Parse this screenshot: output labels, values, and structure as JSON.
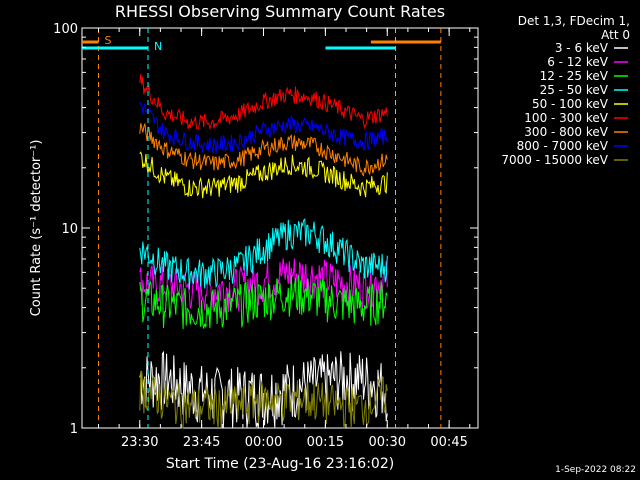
{
  "chart_data": {
    "type": "line",
    "title": "RHESSI Observing Summary Count Rates",
    "xlabel": "Start Time (23-Aug-16 23:16:02)",
    "ylabel": "Count Rate (s⁻¹ detector⁻¹)",
    "yscale": "log",
    "ylim": [
      1,
      100
    ],
    "xlim_minutes": [
      0,
      96
    ],
    "x_tick_labels": [
      "23:30",
      "23:45",
      "00:00",
      "00:15",
      "00:30",
      "00:45"
    ],
    "x_tick_minutes": [
      14,
      29,
      44,
      59,
      74,
      89
    ],
    "y_tick_labels": [
      "1",
      "10",
      "100"
    ],
    "y_tick_values": [
      1,
      10,
      100
    ],
    "header_lines": [
      "Det 1,3, FDecim 1,",
      "Att 0"
    ],
    "legend_position": "right",
    "timestamp": "1-Sep-2022 08:22",
    "markers": [
      {
        "label": "S",
        "color": "#ff8000",
        "start_minute": 4,
        "end_minute": 87
      },
      {
        "label": "N",
        "color": "#00ffff",
        "start_minute": 16,
        "end_minute": 76
      }
    ],
    "series": [
      {
        "name": "3 - 6 keV",
        "color": "#ffffff",
        "values": [
          1.8,
          1.8,
          1.6,
          1.5,
          1.5,
          1.5,
          1.6,
          1.7,
          1.8,
          1.8,
          1.6
        ]
      },
      {
        "name": "6 - 12 keV",
        "color": "#ff00ff",
        "values": [
          5.4,
          5.2,
          5.0,
          5.0,
          5.1,
          5.5,
          6.0,
          5.8,
          5.4,
          5.2,
          5.6
        ]
      },
      {
        "name": "12 - 25 keV",
        "color": "#00ff00",
        "values": [
          4.5,
          4.2,
          4.0,
          4.0,
          4.2,
          4.5,
          4.8,
          4.6,
          4.3,
          4.1,
          4.5
        ]
      },
      {
        "name": "25 - 50 keV",
        "color": "#00ffff",
        "values": [
          8.0,
          6.5,
          6.0,
          6.0,
          6.5,
          8.0,
          9.5,
          9.5,
          8.0,
          6.5,
          6.5
        ]
      },
      {
        "name": "50 - 100 keV",
        "color": "#ffff00",
        "values": [
          23,
          18,
          16,
          16,
          17,
          19,
          21,
          20,
          18,
          16,
          17
        ]
      },
      {
        "name": "100 - 300 keV",
        "color": "#ff0000",
        "values": [
          55,
          38,
          34,
          34,
          37,
          43,
          47,
          45,
          40,
          35,
          38
        ]
      },
      {
        "name": "300 - 800 keV",
        "color": "#ff8000",
        "values": [
          32,
          25,
          22,
          21,
          22,
          25,
          27,
          26,
          23,
          20,
          22
        ]
      },
      {
        "name": "800 - 7000 keV",
        "color": "#0000ff",
        "values": [
          42,
          30,
          27,
          26,
          27,
          31,
          33,
          32,
          29,
          27,
          29
        ]
      },
      {
        "name": "7000 - 15000 keV",
        "color": "#808000",
        "values": [
          1.6,
          1.4,
          1.3,
          1.3,
          1.3,
          1.4,
          1.4,
          1.4,
          1.3,
          1.3,
          1.5
        ]
      }
    ],
    "series_x_minutes": [
      0,
      6,
      12,
      18,
      24,
      30,
      36,
      42,
      48,
      54,
      60
    ],
    "series_time_offset_minute": 14,
    "series_start_minute": 14,
    "series_end_minute": 74
  }
}
